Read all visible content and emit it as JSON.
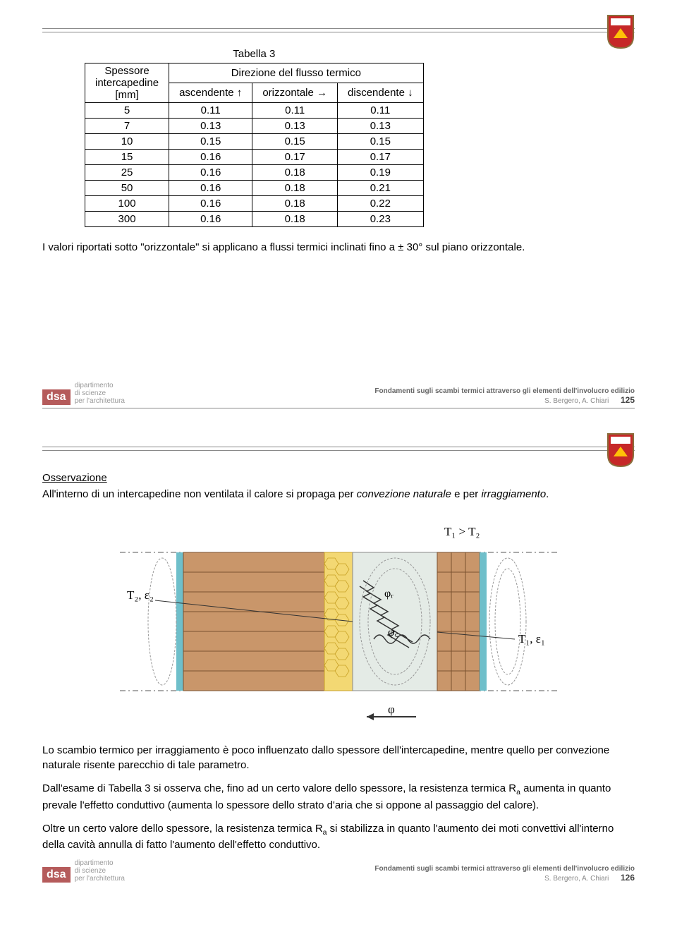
{
  "page1": {
    "caption": "Tabella 3",
    "rowHeader": {
      "line1": "Spessore",
      "line2": "intercapedine",
      "unit": "[mm]"
    },
    "colGroupHeader": "Direzione del flusso termico",
    "cols": [
      "ascendente ↑",
      "orizzontale →",
      "discendente ↓"
    ],
    "rows": [
      {
        "s": "5",
        "a": "0.11",
        "o": "0.11",
        "d": "0.11"
      },
      {
        "s": "7",
        "a": "0.13",
        "o": "0.13",
        "d": "0.13"
      },
      {
        "s": "10",
        "a": "0.15",
        "o": "0.15",
        "d": "0.15"
      },
      {
        "s": "15",
        "a": "0.16",
        "o": "0.17",
        "d": "0.17"
      },
      {
        "s": "25",
        "a": "0.16",
        "o": "0.18",
        "d": "0.19"
      },
      {
        "s": "50",
        "a": "0.16",
        "o": "0.18",
        "d": "0.21"
      },
      {
        "s": "100",
        "a": "0.16",
        "o": "0.18",
        "d": "0.22"
      },
      {
        "s": "300",
        "a": "0.16",
        "o": "0.18",
        "d": "0.23"
      }
    ],
    "note": "I valori riportati sotto \"orizzontale\" si applicano a flussi termici inclinati fino a ± 30° sul piano orizzontale.",
    "footerTitle": "Fondamenti sugli scambi termici attraverso gli elementi dell'involucro edilizio",
    "footerAuthors": "S. Bergero, A. Chiari",
    "footerPage": "125",
    "dsa_l1": "dipartimento",
    "dsa_l2": "di scienze",
    "dsa_l3": "per l'architettura"
  },
  "page2": {
    "obsTitle": "Osservazione",
    "obsText1": "All'interno di un intercapedine non ventilata il calore si propaga per ",
    "obsItalic1": "convezione naturale",
    "obsMid": " e per ",
    "obsItalic2": "irraggiamento",
    "obsEnd": ".",
    "figLabels": {
      "t1gt_t2": "T₁ > T₂",
      "t2e2": "T₂, ε₂",
      "t1e1": "T₁, ε₁",
      "phir": "φᵣ",
      "phic": "φ꜀",
      "phi": "φ"
    },
    "figColors": {
      "wall1": "#c9966a",
      "wall2": "#c9966a",
      "honeycomb": "#f3d873",
      "cavity": "#e4ebe6",
      "edge": "#6fbfca",
      "line": "#555555"
    },
    "para1": "Lo scambio termico per irraggiamento è poco influenzato dallo spessore dell'intercapedine, mentre quello per convezione naturale risente parecchio di tale parametro.",
    "para2_a": "Dall'esame di Tabella 3 si osserva che, fino ad un certo valore dello spessore, la resistenza termica R",
    "para2_sub": "a",
    "para2_b": " aumenta in quanto prevale l'effetto conduttivo (aumenta lo spessore dello strato d'aria che si oppone al passaggio del calore).",
    "para3_a": "Oltre un certo valore dello spessore, la resistenza termica R",
    "para3_sub": "a",
    "para3_b": " si stabilizza in quanto l'aumento dei moti convettivi all'interno della cavità annulla di fatto l'aumento dell'effetto conduttivo.",
    "footerTitle": "Fondamenti sugli scambi termici attraverso gli elementi dell'involucro edilizio",
    "footerAuthors": "S. Bergero, A. Chiari",
    "footerPage": "126"
  }
}
